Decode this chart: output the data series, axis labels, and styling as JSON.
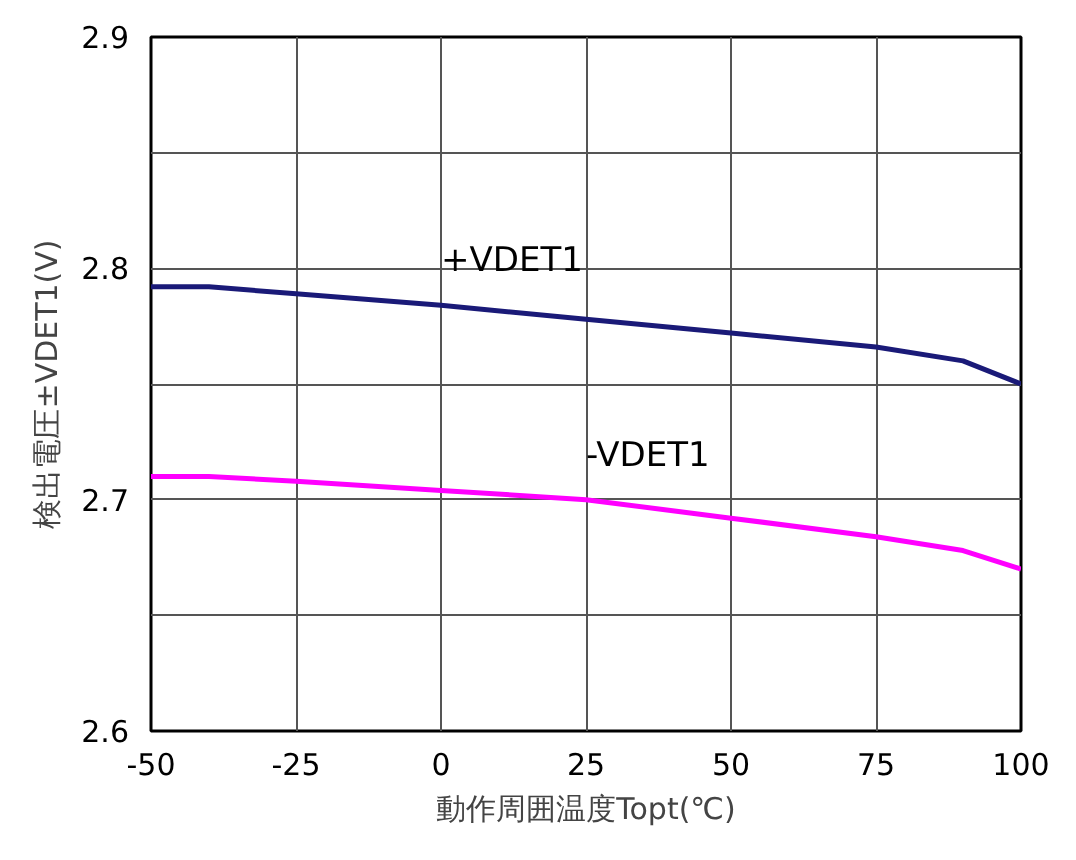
{
  "chart_data": {
    "type": "line",
    "xlabel": "動作周囲温度Topt(℃)",
    "ylabel": "検出電圧±VDET1(V)",
    "x": [
      -50,
      -40,
      -25,
      0,
      25,
      50,
      75,
      90,
      100
    ],
    "series": [
      {
        "name": "+VDET1",
        "color": "#1a1a78",
        "values": [
          2.792,
          2.792,
          2.789,
          2.784,
          2.778,
          2.772,
          2.766,
          2.76,
          2.75
        ]
      },
      {
        "name": "-VDET1",
        "color": "#ff00ff",
        "values": [
          2.71,
          2.71,
          2.708,
          2.704,
          2.7,
          2.692,
          2.684,
          2.678,
          2.67
        ]
      }
    ],
    "xlim": [
      -50,
      100
    ],
    "ylim": [
      2.6,
      2.9
    ],
    "xticks": [
      -50,
      -25,
      0,
      25,
      50,
      75,
      100
    ],
    "yticks": [
      2.6,
      {
        "value": 2.65,
        "label": null
      },
      2.7,
      {
        "value": 2.75,
        "label": null
      },
      2.8,
      {
        "value": 2.85,
        "label": null
      },
      2.9
    ],
    "grid": true,
    "line_style": "solid",
    "marker": "none"
  }
}
